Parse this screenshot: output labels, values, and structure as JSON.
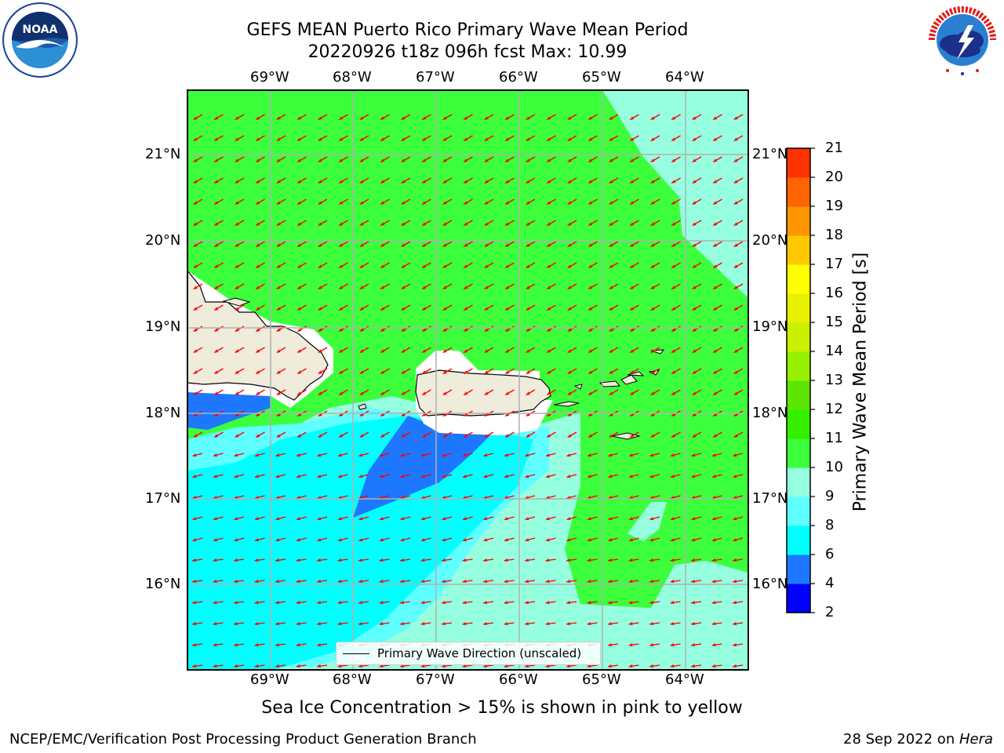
{
  "title": {
    "line1": "GEFS MEAN Puerto Rico Primary Wave Mean Period",
    "line2": "20220926 t18z 096h fcst   Max: 10.99"
  },
  "map": {
    "lon_labels": [
      "69°W",
      "68°W",
      "67°W",
      "66°W",
      "65°W",
      "64°W"
    ],
    "lat_labels": [
      "21°N",
      "20°N",
      "19°N",
      "18°N",
      "17°N",
      "16°N"
    ],
    "land_color": "#efecdc",
    "arrow_color": "#ff0000",
    "grid_color": "#b0b0b0"
  },
  "legend": {
    "label": "Primary Wave Direction (unscaled)"
  },
  "colorbar": {
    "title": "Primary Wave Mean Period [s]",
    "ticks": [
      "2",
      "4",
      "6",
      "8",
      "9",
      "10",
      "11",
      "12",
      "13",
      "14",
      "15",
      "16",
      "17",
      "18",
      "19",
      "20",
      "21"
    ],
    "colors": [
      "#0000ff",
      "#1e78ff",
      "#00ffff",
      "#5fffff",
      "#96ffe0",
      "#3cff3c",
      "#34f000",
      "#5ae600",
      "#96f000",
      "#c8f000",
      "#e6f000",
      "#ffff00",
      "#ffc800",
      "#ff9600",
      "#ff6400",
      "#ff3200",
      "#ff0000"
    ]
  },
  "note": "Sea Ice Concentration > 15% is shown in pink to yellow",
  "footer": {
    "left": "NCEP/EMC/Verification Post Processing Product Generation Branch",
    "right_prefix": "28 Sep 2022 on ",
    "right_machine": "Hera"
  },
  "logos": {
    "noaa_text": "NOAA",
    "nws_text": "NATIONAL WEATHER SERVICE",
    "noaa_ring_text": "NATIONAL OCEANIC AND ATMOSPHERIC ADMINISTRATION • U.S. DEPARTMENT OF COMMERCE"
  }
}
